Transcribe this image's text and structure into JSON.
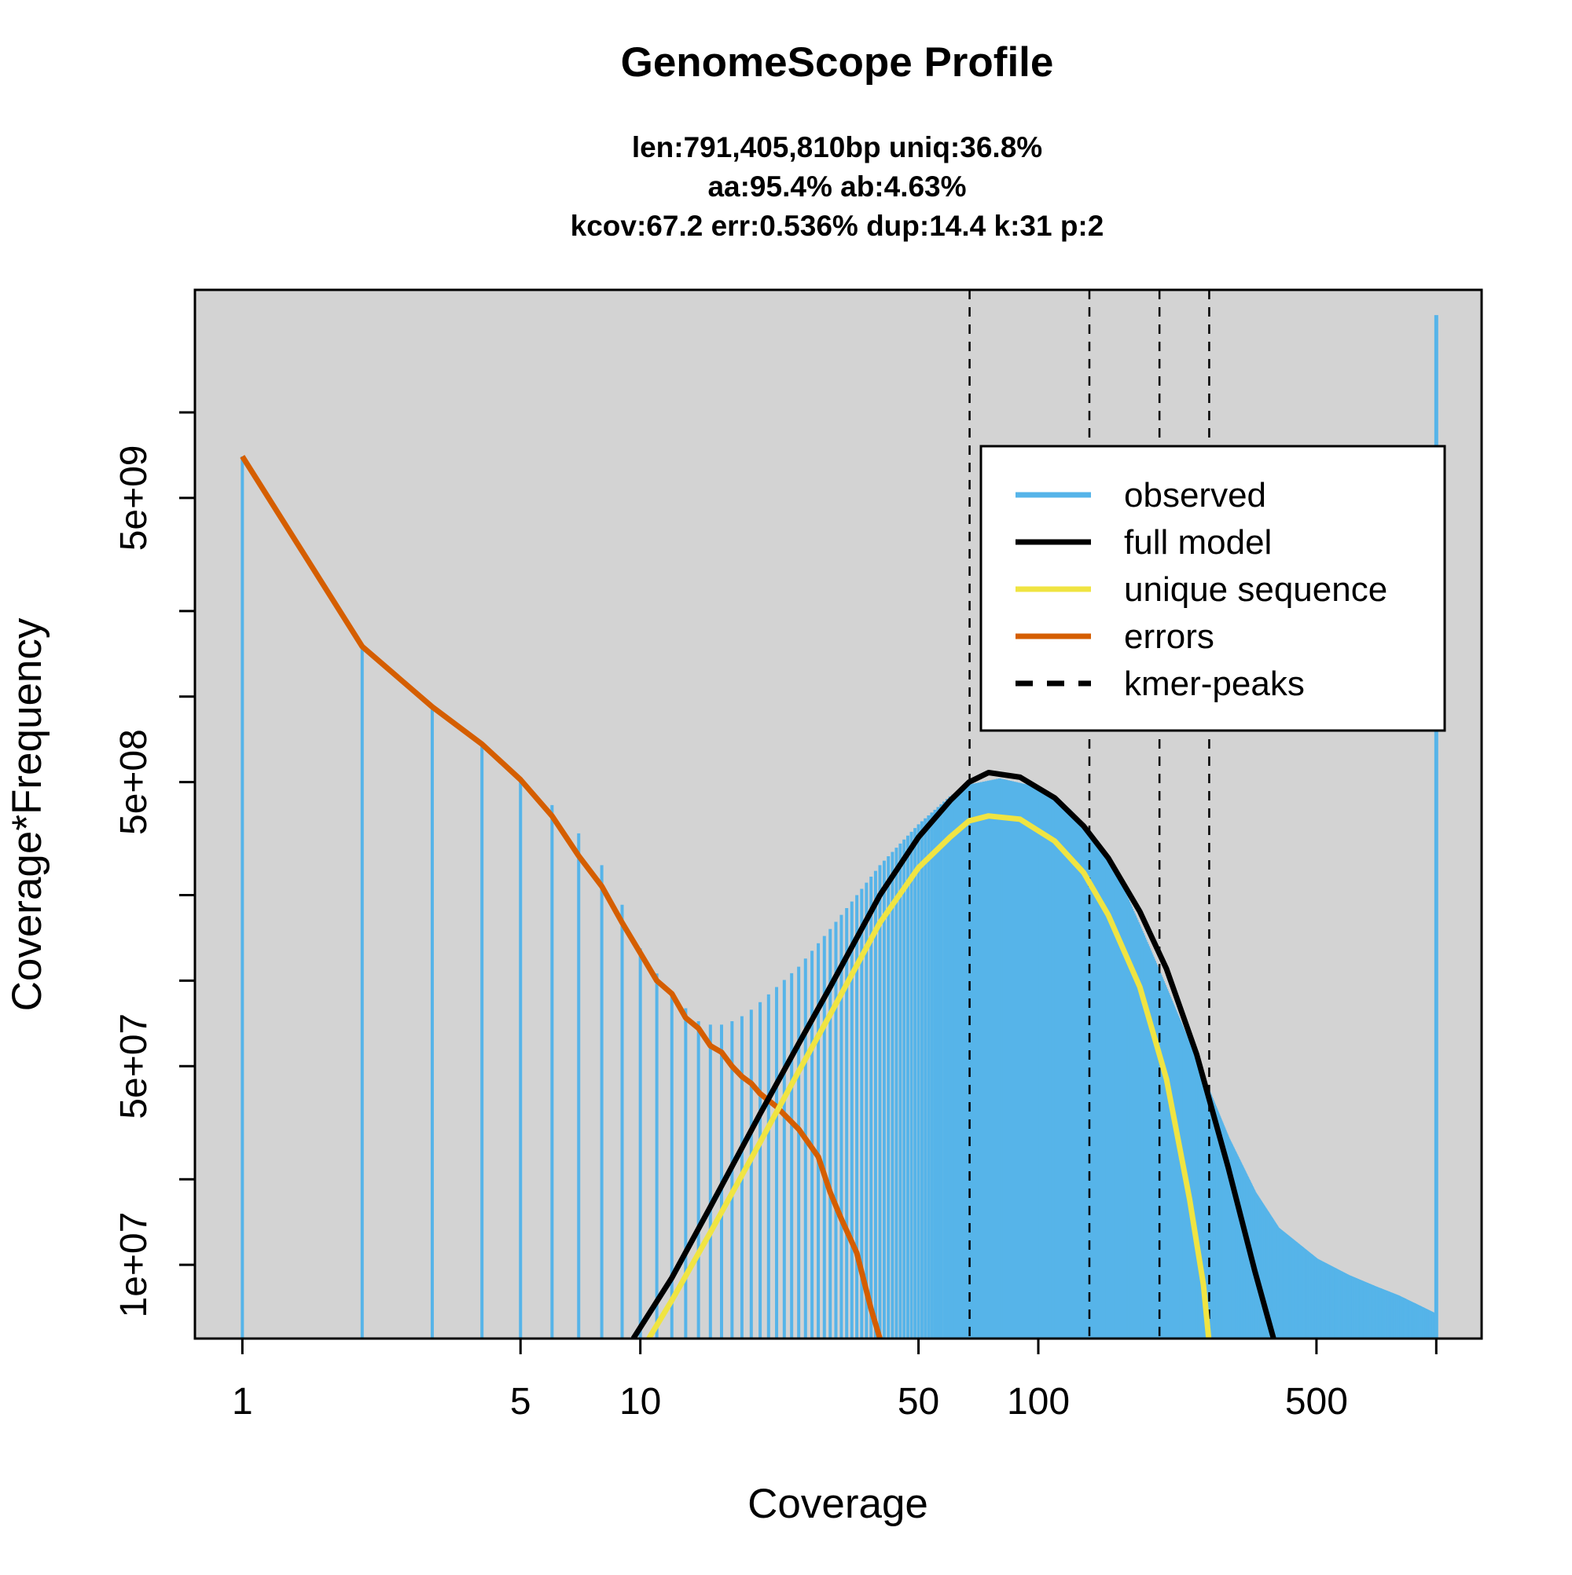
{
  "chart_data": {
    "type": "bar",
    "title": "GenomeScope Profile",
    "subtitle_lines": [
      "len:791,405,810bp uniq:36.8%",
      "aa:95.4% ab:4.63%",
      "kcov:67.2 err:0.536%  dup:14.4  k:31 p:2"
    ],
    "xlabel": "Coverage",
    "ylabel": "Coverage*Frequency",
    "x_scale": "log",
    "y_scale": "log",
    "xlim": [
      0.76,
      1300
    ],
    "ylim": [
      5500000,
      27000000000
    ],
    "x_ticks": [
      1,
      5,
      10,
      50,
      100,
      500,
      1000
    ],
    "x_tick_labels": [
      "1",
      "5",
      "10",
      "50",
      "100",
      "500",
      ""
    ],
    "y_ticks": [
      10000000,
      20000000,
      50000000,
      100000000,
      200000000,
      500000000,
      1000000000,
      2000000000,
      5000000000,
      10000000000
    ],
    "y_tick_labels": [
      "1e+07",
      "",
      "5e+07",
      "",
      "",
      "5e+08",
      "",
      "",
      "5e+09",
      ""
    ],
    "kmer_peaks": [
      67.2,
      134.4,
      201.6,
      268.8
    ],
    "grid": false,
    "legend_position": "top-right",
    "legend": [
      {
        "label": "observed",
        "color": "#56B4E9",
        "style": "solid"
      },
      {
        "label": "full model",
        "color": "#000000",
        "style": "solid"
      },
      {
        "label": "unique sequence",
        "color": "#F0E442",
        "style": "solid"
      },
      {
        "label": "errors",
        "color": "#D55E00",
        "style": "solid"
      },
      {
        "label": "kmer-peaks",
        "color": "#000000",
        "style": "dashed"
      }
    ],
    "colors": {
      "observed": "#56B4E9",
      "full_model": "#000000",
      "unique_sequence": "#F0E442",
      "errors": "#D55E00",
      "plot_background": "#D3D3D3"
    },
    "observed_profile": {
      "x": [
        1,
        2,
        3,
        4,
        5,
        6,
        7,
        8,
        9,
        10,
        11,
        12,
        13,
        14,
        15,
        16,
        17,
        18,
        19,
        20,
        25,
        30,
        35,
        40,
        50,
        60,
        67,
        80,
        100,
        120,
        140,
        160,
        180,
        200,
        250,
        300,
        350,
        400,
        500,
        600,
        700,
        800,
        900,
        999
      ],
      "y": [
        7000000000,
        1500000000,
        920000000,
        680000000,
        510000000,
        415000000,
        330000000,
        255000000,
        185000000,
        130000000,
        106000000,
        90000000,
        80000000,
        72000000,
        70000000,
        70000000,
        72000000,
        75000000,
        79000000,
        84000000,
        112000000,
        152000000,
        200000000,
        255000000,
        355000000,
        445000000,
        490000000,
        515000000,
        480000000,
        400000000,
        310000000,
        225000000,
        155000000,
        110000000,
        52000000,
        28000000,
        18000000,
        13500000,
        10500000,
        9200000,
        8400000,
        7800000,
        7200000,
        6700000
      ]
    },
    "observed_last_bin": {
      "x": 1000,
      "y": 22000000000
    },
    "full_model": {
      "x": [
        9.6,
        12,
        15,
        20,
        25,
        30,
        40,
        50,
        60,
        67,
        75,
        90,
        110,
        130,
        150,
        180,
        210,
        250,
        300,
        350,
        390
      ],
      "y": [
        5500000,
        9000000,
        16000000,
        34000000,
        60000000,
        95000000,
        200000000,
        320000000,
        430000000,
        500000000,
        540000000,
        520000000,
        440000000,
        350000000,
        270000000,
        175000000,
        110000000,
        55000000,
        22000000,
        9500000,
        5500000
      ]
    },
    "unique_sequence": {
      "x": [
        10.5,
        12,
        15,
        20,
        25,
        30,
        40,
        50,
        60,
        67,
        75,
        90,
        110,
        130,
        150,
        180,
        210,
        240,
        260,
        268
      ],
      "y": [
        5500000,
        7500000,
        13000000,
        27000000,
        48000000,
        76000000,
        160000000,
        250000000,
        320000000,
        365000000,
        380000000,
        370000000,
        310000000,
        240000000,
        170000000,
        95000000,
        45000000,
        17000000,
        8500000,
        5500000
      ]
    },
    "errors": {
      "x": [
        1,
        2,
        3,
        4,
        5,
        6,
        7,
        8,
        9,
        10,
        11,
        12,
        13,
        14,
        15,
        16,
        17,
        18,
        19,
        20,
        22,
        25,
        28,
        30,
        32,
        35,
        38,
        40
      ],
      "y": [
        7000000000,
        1500000000,
        920000000,
        680000000,
        510000000,
        380000000,
        275000000,
        215000000,
        160000000,
        125000000,
        100000000,
        90000000,
        74000000,
        68000000,
        59000000,
        56000000,
        50000000,
        46000000,
        43500000,
        40000000,
        36000000,
        30000000,
        24000000,
        18000000,
        14500000,
        11000000,
        7000000,
        5500000
      ]
    }
  }
}
